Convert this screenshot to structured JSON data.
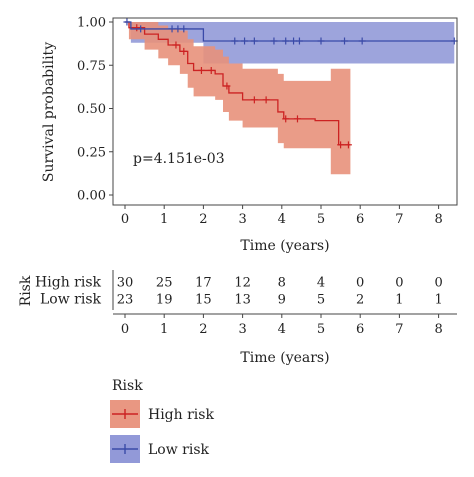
{
  "chart_data": {
    "type": "line",
    "subtype": "kaplan-meier",
    "xlabel": "Time (years)",
    "ylabel": "Survival probability",
    "xlim": [
      0,
      8.4
    ],
    "ylim": [
      0,
      1
    ],
    "x_ticks": [
      0,
      1,
      2,
      3,
      4,
      5,
      6,
      7,
      8
    ],
    "y_ticks": [
      0.0,
      0.25,
      0.5,
      0.75,
      1.0
    ],
    "y_tick_labels": [
      "0.00",
      "0.25",
      "0.50",
      "0.75",
      "1.00"
    ],
    "annotation": "p=4.151e-03",
    "series": [
      {
        "name": "High risk",
        "color": "#cc2222",
        "fill": "#e8917b",
        "steps": [
          [
            0,
            1.0
          ],
          [
            0.1,
            0.967
          ],
          [
            0.5,
            0.93
          ],
          [
            0.85,
            0.9
          ],
          [
            1.1,
            0.867
          ],
          [
            1.4,
            0.83
          ],
          [
            1.6,
            0.76
          ],
          [
            1.75,
            0.72
          ],
          [
            2.05,
            0.72
          ],
          [
            2.3,
            0.7
          ],
          [
            2.5,
            0.63
          ],
          [
            2.65,
            0.59
          ],
          [
            3.0,
            0.55
          ],
          [
            3.5,
            0.55
          ],
          [
            3.9,
            0.48
          ],
          [
            4.05,
            0.44
          ],
          [
            4.6,
            0.44
          ],
          [
            4.85,
            0.43
          ],
          [
            5.25,
            0.43
          ],
          [
            5.45,
            0.29
          ],
          [
            5.75,
            0.29
          ]
        ],
        "ci_upper": [
          [
            0,
            1.0
          ],
          [
            0.1,
            1.0
          ],
          [
            0.5,
            1.0
          ],
          [
            0.85,
            0.98
          ],
          [
            1.1,
            0.96
          ],
          [
            1.4,
            0.95
          ],
          [
            1.6,
            0.9
          ],
          [
            1.75,
            0.86
          ],
          [
            2.05,
            0.86
          ],
          [
            2.3,
            0.84
          ],
          [
            2.5,
            0.8
          ],
          [
            2.65,
            0.76
          ],
          [
            3.0,
            0.73
          ],
          [
            3.5,
            0.73
          ],
          [
            3.9,
            0.7
          ],
          [
            4.05,
            0.66
          ],
          [
            4.6,
            0.66
          ],
          [
            4.85,
            0.66
          ],
          [
            5.25,
            0.73
          ],
          [
            5.45,
            0.73
          ],
          [
            5.75,
            0.73
          ]
        ],
        "ci_lower": [
          [
            0,
            1.0
          ],
          [
            0.1,
            0.9
          ],
          [
            0.5,
            0.84
          ],
          [
            0.85,
            0.79
          ],
          [
            1.1,
            0.75
          ],
          [
            1.4,
            0.7
          ],
          [
            1.6,
            0.62
          ],
          [
            1.75,
            0.57
          ],
          [
            2.05,
            0.57
          ],
          [
            2.3,
            0.55
          ],
          [
            2.5,
            0.48
          ],
          [
            2.65,
            0.43
          ],
          [
            3.0,
            0.39
          ],
          [
            3.5,
            0.39
          ],
          [
            3.9,
            0.3
          ],
          [
            4.05,
            0.27
          ],
          [
            4.6,
            0.27
          ],
          [
            4.85,
            0.27
          ],
          [
            5.25,
            0.12
          ],
          [
            5.45,
            0.12
          ],
          [
            5.75,
            0.12
          ]
        ],
        "censored": [
          [
            0.3,
            0.967
          ],
          [
            1.3,
            0.867
          ],
          [
            1.5,
            0.83
          ],
          [
            1.95,
            0.72
          ],
          [
            2.2,
            0.72
          ],
          [
            2.6,
            0.63
          ],
          [
            3.3,
            0.55
          ],
          [
            3.6,
            0.55
          ],
          [
            4.1,
            0.44
          ],
          [
            4.4,
            0.44
          ],
          [
            5.5,
            0.29
          ],
          [
            5.7,
            0.29
          ]
        ],
        "risk_table": [
          30,
          25,
          17,
          12,
          8,
          4,
          0,
          0,
          0
        ]
      },
      {
        "name": "Low risk",
        "color": "#3a4aa8",
        "fill": "#8c94d6",
        "steps": [
          [
            0,
            1.0
          ],
          [
            0.15,
            0.96
          ],
          [
            1.95,
            0.96
          ],
          [
            2.0,
            0.89
          ],
          [
            8.4,
            0.89
          ]
        ],
        "ci_upper": [
          [
            0,
            1.0
          ],
          [
            8.4,
            1.0
          ]
        ],
        "ci_lower": [
          [
            0,
            1.0
          ],
          [
            0.15,
            0.88
          ],
          [
            1.95,
            0.88
          ],
          [
            2.0,
            0.76
          ],
          [
            8.4,
            0.76
          ]
        ],
        "censored": [
          [
            0.05,
            1.0
          ],
          [
            0.4,
            0.96
          ],
          [
            1.2,
            0.96
          ],
          [
            1.35,
            0.96
          ],
          [
            1.5,
            0.96
          ],
          [
            2.8,
            0.89
          ],
          [
            3.05,
            0.89
          ],
          [
            3.3,
            0.89
          ],
          [
            3.8,
            0.89
          ],
          [
            4.1,
            0.89
          ],
          [
            4.3,
            0.89
          ],
          [
            4.45,
            0.89
          ],
          [
            5.0,
            0.89
          ],
          [
            5.6,
            0.89
          ],
          [
            6.05,
            0.89
          ],
          [
            8.4,
            0.89
          ]
        ],
        "risk_table": [
          23,
          19,
          15,
          13,
          9,
          5,
          2,
          1,
          1
        ]
      }
    ],
    "risk_table": {
      "title": "Risk",
      "xlabel": "Time (years)"
    },
    "legend": {
      "title": "Risk",
      "placement": "bottom"
    }
  }
}
